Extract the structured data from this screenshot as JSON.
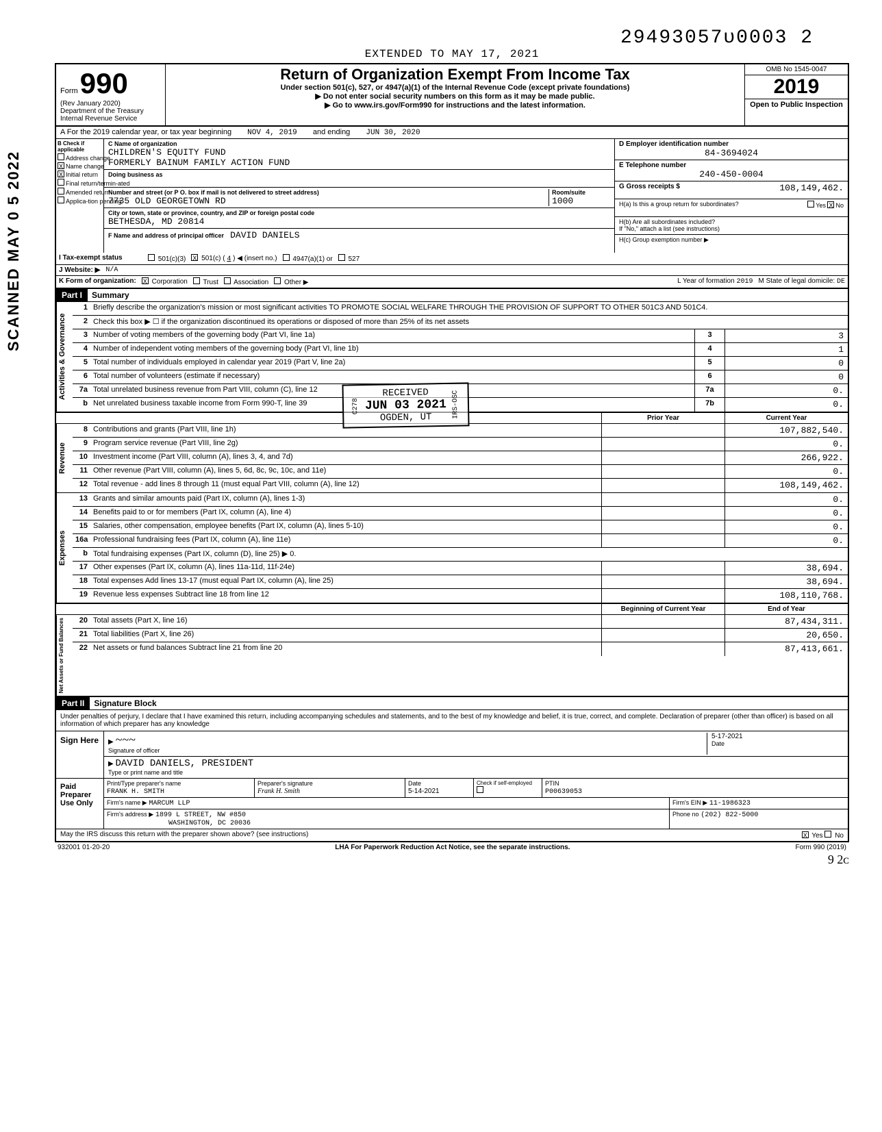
{
  "doc_stamp_top": "29493057ᴜ0003  2",
  "vertical_stamp": "SCANNED MAY 0 5 2022",
  "extended_line": "EXTENDED TO MAY 17, 2021",
  "header": {
    "form_label": "Form",
    "form_number": "990",
    "rev": "(Rev January 2020)",
    "dept": "Department of the Treasury",
    "irs": "Internal Revenue Service",
    "title": "Return of Organization Exempt From Income Tax",
    "subtitle": "Under section 501(c), 527, or 4947(a)(1) of the Internal Revenue Code (except private foundations)",
    "arrow1": "▶ Do not enter social security numbers on this form as it may be made public.",
    "arrow2": "▶ Go to www.irs.gov/Form990 for instructions and the latest information.",
    "omb": "OMB No 1545-0047",
    "year": "2019",
    "open": "Open to Public Inspection"
  },
  "row_a": {
    "label": "A  For the 2019 calendar year, or tax year beginning",
    "begin": "NOV 4, 2019",
    "mid": "and ending",
    "end": "JUN 30, 2020"
  },
  "col_b": {
    "hdr": "B Check if applicable",
    "items": [
      {
        "label": "Address change",
        "checked": false
      },
      {
        "label": "Name change",
        "checked": true
      },
      {
        "label": "Initial return",
        "checked": true
      },
      {
        "label": "Final return/termin-ated",
        "checked": false
      },
      {
        "label": "Amended return",
        "checked": false
      },
      {
        "label": "Applica-tion pending",
        "checked": false
      }
    ]
  },
  "col_c": {
    "name_label": "C Name of organization",
    "name": "CHILDREN'S EQUITY FUND",
    "formerly": "FORMERLY BAINUM FAMILY ACTION FUND",
    "dba_label": "Doing business as",
    "dba": "",
    "addr_label": "Number and street (or P O. box if mail is not delivered to street address)",
    "addr": "7735 OLD GEORGETOWN RD",
    "room_label": "Room/suite",
    "room": "1000",
    "city_label": "City or town, state or province, country, and ZIP or foreign postal code",
    "city": "BETHESDA, MD   20814",
    "officer_label": "F Name and address of principal officer",
    "officer": "DAVID DANIELS"
  },
  "col_de": {
    "d_label": "D  Employer identification number",
    "d_value": "84-3694024",
    "e_label": "E  Telephone number",
    "e_value": "240-450-0004",
    "g_label": "G  Gross receipts $",
    "g_value": "108,149,462.",
    "ha_label": "H(a) Is this a group return for subordinates?",
    "ha_yes": "Yes",
    "ha_no": "No",
    "ha_checked": "X",
    "hb_label": "H(b) Are all subordinates included?",
    "hb_note": "If \"No,\" attach a list (see instructions)",
    "hc_label": "H(c) Group exemption number ▶"
  },
  "row_i": {
    "label": "I  Tax-exempt status",
    "items": [
      "501(c)(3)",
      "501(c) (",
      "4",
      ") ◀  (insert no.)",
      "4947(a)(1) or",
      "527"
    ],
    "checked_501c": "X"
  },
  "row_j": {
    "label": "J  Website: ▶",
    "value": "N/A"
  },
  "row_k": {
    "label": "K  Form of organization:",
    "corp": "Corporation",
    "corp_x": "X",
    "trust": "Trust",
    "assoc": "Association",
    "other": "Other ▶",
    "l_label": "L Year of formation",
    "l_value": "2019",
    "m_label": "M State of legal domicile:",
    "m_value": "DE"
  },
  "part1": {
    "hdr": "Part I",
    "title": "Summary",
    "governance": {
      "label": "Activities & Governance",
      "lines": [
        {
          "n": "1",
          "desc": "Briefly describe the organization's mission or most significant activities   TO PROMOTE SOCIAL WELFARE THROUGH THE PROVISION OF SUPPORT TO OTHER 501C3 AND 501C4."
        },
        {
          "n": "2",
          "desc": "Check this box ▶ ☐   if the organization discontinued its operations or disposed of more than 25% of its net assets"
        },
        {
          "n": "3",
          "desc": "Number of voting members of the governing body (Part VI, line 1a)",
          "box": "3",
          "val": "3"
        },
        {
          "n": "4",
          "desc": "Number of independent voting members of the governing body (Part VI, line 1b)",
          "box": "4",
          "val": "1"
        },
        {
          "n": "5",
          "desc": "Total number of individuals employed in calendar year 2019 (Part V, line 2a)",
          "box": "5",
          "val": "0"
        },
        {
          "n": "6",
          "desc": "Total number of volunteers (estimate if necessary)",
          "box": "6",
          "val": "0"
        },
        {
          "n": "7a",
          "desc": "Total unrelated business revenue from Part VIII, column (C), line 12",
          "box": "7a",
          "val": "0."
        },
        {
          "n": "b",
          "desc": "Net unrelated business taxable income from Form 990-T, line 39",
          "box": "7b",
          "val": "0."
        }
      ]
    },
    "year_cols": {
      "prior": "Prior Year",
      "current": "Current Year"
    },
    "revenue": {
      "label": "Revenue",
      "lines": [
        {
          "n": "8",
          "desc": "Contributions and grants (Part VIII, line 1h)",
          "prior": "",
          "cur": "107,882,540."
        },
        {
          "n": "9",
          "desc": "Program service revenue (Part VIII, line 2g)",
          "prior": "",
          "cur": "0."
        },
        {
          "n": "10",
          "desc": "Investment income (Part VIII, column (A), lines 3, 4, and 7d)",
          "prior": "",
          "cur": "266,922."
        },
        {
          "n": "11",
          "desc": "Other revenue (Part VIII, column (A), lines 5, 6d, 8c, 9c, 10c, and 11e)",
          "prior": "",
          "cur": "0."
        },
        {
          "n": "12",
          "desc": "Total revenue - add lines 8 through 11 (must equal Part VIII, column (A), line 12)",
          "prior": "",
          "cur": "108,149,462."
        }
      ]
    },
    "expenses": {
      "label": "Expenses",
      "lines": [
        {
          "n": "13",
          "desc": "Grants and similar amounts paid (Part IX, column (A), lines 1-3)",
          "prior": "",
          "cur": "0."
        },
        {
          "n": "14",
          "desc": "Benefits paid to or for members (Part IX, column (A), line 4)",
          "prior": "",
          "cur": "0."
        },
        {
          "n": "15",
          "desc": "Salaries, other compensation, employee benefits (Part IX, column (A), lines 5-10)",
          "prior": "",
          "cur": "0."
        },
        {
          "n": "16a",
          "desc": "Professional fundraising fees (Part IX, column (A), line 11e)",
          "prior": "",
          "cur": "0."
        },
        {
          "n": "b",
          "desc": "Total fundraising expenses (Part IX, column (D), line 25)    ▶           0."
        },
        {
          "n": "17",
          "desc": "Other expenses (Part IX, column (A), lines 11a-11d, 11f-24e)",
          "prior": "",
          "cur": "38,694."
        },
        {
          "n": "18",
          "desc": "Total expenses  Add lines 13-17 (must equal Part IX, column (A), line 25)",
          "prior": "",
          "cur": "38,694."
        },
        {
          "n": "19",
          "desc": "Revenue less expenses  Subtract line 18 from line 12",
          "prior": "",
          "cur": "108,110,768."
        }
      ]
    },
    "net_cols": {
      "begin": "Beginning of Current Year",
      "end": "End of Year"
    },
    "netassets": {
      "label": "Net Assets or Fund Balances",
      "lines": [
        {
          "n": "20",
          "desc": "Total assets (Part X, line 16)",
          "prior": "",
          "cur": "87,434,311."
        },
        {
          "n": "21",
          "desc": "Total liabilities (Part X, line 26)",
          "prior": "",
          "cur": "20,650."
        },
        {
          "n": "22",
          "desc": "Net assets or fund balances  Subtract line 21 from line 20",
          "prior": "",
          "cur": "87,413,661."
        }
      ]
    }
  },
  "received_stamp": {
    "l1": "RECEIVED",
    "date": "JUN 03 2021",
    "l3": "OGDEN, UT",
    "side1": "C278",
    "side2": "IRS-OSC"
  },
  "part2": {
    "hdr": "Part II",
    "title": "Signature Block",
    "declaration": "Under penalties of perjury, I declare that I have examined this return, including accompanying schedules and statements, and to the best of my knowledge and belief, it is true, correct, and complete. Declaration of preparer (other than officer) is based on all information of which preparer has any knowledge",
    "sign_here": "Sign Here",
    "sig_label": "Signature of officer",
    "sig_date": "5-17-2021",
    "name_label": "Type or print name and title",
    "name": "DAVID DANIELS, PRESIDENT",
    "paid": "Paid Preparer Use Only",
    "prep_name_label": "Print/Type preparer's name",
    "prep_name": "FRANK H. SMITH",
    "prep_sig_label": "Preparer's signature",
    "prep_sig": "Frank H. Smith",
    "prep_date_label": "Date",
    "prep_date": "5-14-2021",
    "check_label": "Check if self-employed",
    "ptin_label": "PTIN",
    "ptin": "P00639053",
    "firm_name_label": "Firm's name ▶",
    "firm_name": "MARCUM LLP",
    "firm_ein_label": "Firm's EIN ▶",
    "firm_ein": "11-1986323",
    "firm_addr_label": "Firm's address ▶",
    "firm_addr1": "1899 L STREET, NW #850",
    "firm_addr2": "WASHINGTON, DC  20036",
    "phone_label": "Phone no",
    "phone": "(202) 822-5000",
    "discuss": "May the IRS discuss this return with the preparer shown above? (see instructions)",
    "discuss_yes": "Yes",
    "discuss_x": "X",
    "discuss_no": "No"
  },
  "footer": {
    "left": "932001 01-20-20",
    "mid": "LHA  For Paperwork Reduction Act Notice, see the separate instructions.",
    "right": "Form 990 (2019)",
    "hand": "9 2ᴄ"
  }
}
